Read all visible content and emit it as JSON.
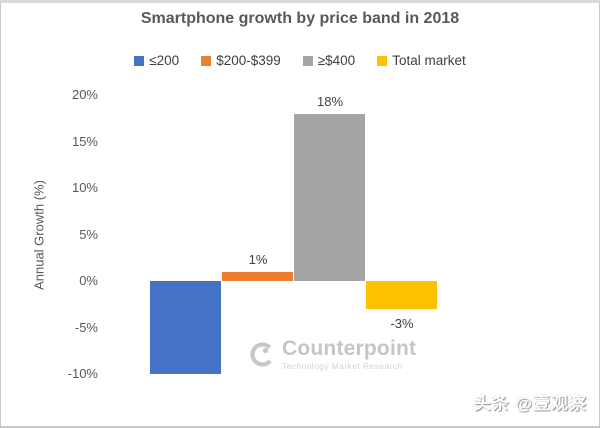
{
  "title": "Smartphone growth by price band in 2018",
  "watermark": {
    "brand": "Counterpoint",
    "tagline": "Technology Market Research"
  },
  "credit": "头条 @壹观察",
  "chart_data": {
    "type": "bar",
    "title": "Smartphone growth by price band in 2018",
    "xlabel": "",
    "ylabel": "Annual Growth (%)",
    "ylim": [
      -10,
      20
    ],
    "ytick_step": 5,
    "ytick_labels": [
      "20%",
      "15%",
      "10%",
      "5%",
      "0%",
      "-5%",
      "-10%"
    ],
    "grid": false,
    "legend_position": "top",
    "categories": [
      "2018"
    ],
    "series": [
      {
        "key": "under-200",
        "name": "≤200",
        "value": -10,
        "label": null,
        "color": "#4472C4"
      },
      {
        "key": "200-to-399",
        "name": "$200-$399",
        "value": 1,
        "label": "1%",
        "color": "#ED7D31"
      },
      {
        "key": "over-400",
        "name": "≥$400",
        "value": 18,
        "label": "18%",
        "color": "#A5A5A5"
      },
      {
        "key": "total-market",
        "name": "Total market",
        "value": -3,
        "label": "-3%",
        "color": "#FFC000"
      }
    ]
  }
}
